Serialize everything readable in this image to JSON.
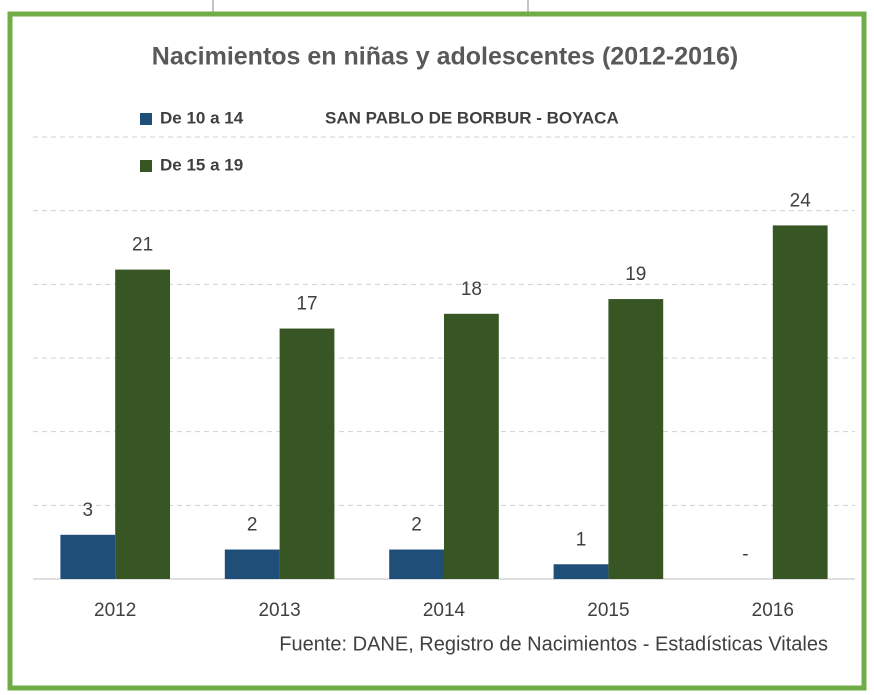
{
  "chart_data": {
    "type": "bar",
    "title": "Nacimientos en niñas y adolescentes (2012-2016)",
    "subtitle": "SAN PABLO DE BORBUR - BOYACA",
    "categories": [
      "2012",
      "2013",
      "2014",
      "2015",
      "2016"
    ],
    "series": [
      {
        "name": "De 10 a 14",
        "color": "#1f4e79",
        "values": [
          3,
          2,
          2,
          1,
          0
        ],
        "value_labels": [
          "3",
          "2",
          "2",
          "1",
          "-"
        ]
      },
      {
        "name": "De 15 a 19",
        "color": "#375623",
        "values": [
          21,
          17,
          18,
          19,
          24
        ]
      }
    ],
    "ylim": [
      0,
      30
    ],
    "yticks": [
      0,
      5,
      10,
      15,
      20,
      25,
      30
    ],
    "grid": true,
    "note": "Fuente: DANE, Registro de Nacimientos - Estadísticas Vitales"
  }
}
